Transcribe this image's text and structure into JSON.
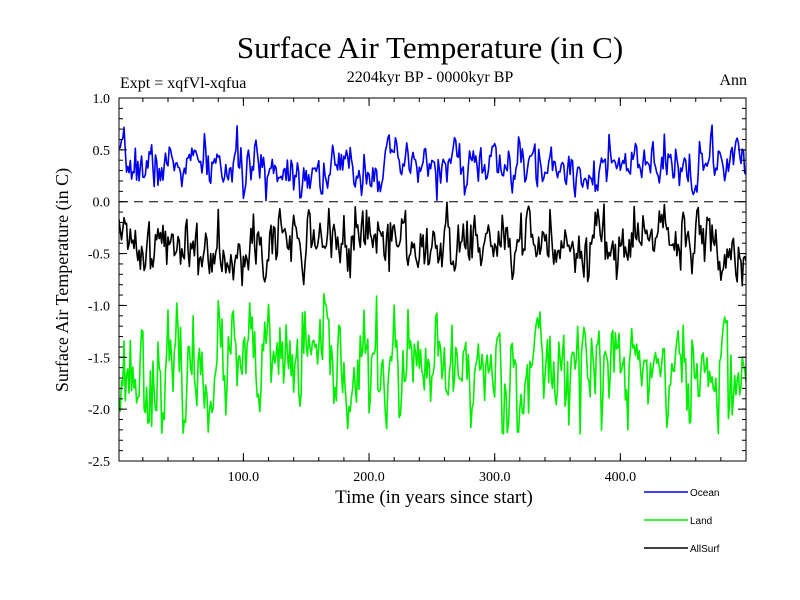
{
  "chart_data": {
    "type": "line",
    "title": "Surface Air Temperature (in C)",
    "subtitle": "2204kyr BP - 0000kyr BP",
    "experiment": "Expt = xqfVl-xqfua",
    "season": "Ann",
    "xlabel": "Time (in years since start)",
    "ylabel": "Surface Air Temperature (in C)",
    "xlim": [
      1,
      500
    ],
    "ylim": [
      -2.5,
      1.0
    ],
    "xticks": [
      {
        "value": 100,
        "label": "100.0"
      },
      {
        "value": 200,
        "label": "200.0"
      },
      {
        "value": 300,
        "label": "300.0"
      },
      {
        "value": 400,
        "label": "400.0"
      }
    ],
    "yticks": [
      {
        "value": 1.0,
        "label": "1.0"
      },
      {
        "value": 0.5,
        "label": "0.5"
      },
      {
        "value": 0.0,
        "label": "0.0"
      },
      {
        "value": -0.5,
        "label": "-0.5"
      },
      {
        "value": -1.0,
        "label": "-1.0"
      },
      {
        "value": -1.5,
        "label": "-1.5"
      },
      {
        "value": -2.0,
        "label": "-2.0"
      },
      {
        "value": -2.5,
        "label": "-2.5"
      }
    ],
    "reference_line": 0.0,
    "legend_position": "below-right",
    "series": [
      {
        "name": "Ocean",
        "color": "#0000ee",
        "mean": 0.33,
        "amplitude": 0.12,
        "min": 0.0,
        "max": 0.82,
        "seed": 7
      },
      {
        "name": "Land",
        "color": "#00ee00",
        "mean": -1.62,
        "amplitude": 0.27,
        "min": -2.24,
        "max": -0.88,
        "seed": 23
      },
      {
        "name": "AllSurf",
        "color": "#000000",
        "mean": -0.4,
        "amplitude": 0.16,
        "min": -0.82,
        "max": 0.15,
        "seed": 41
      }
    ]
  }
}
